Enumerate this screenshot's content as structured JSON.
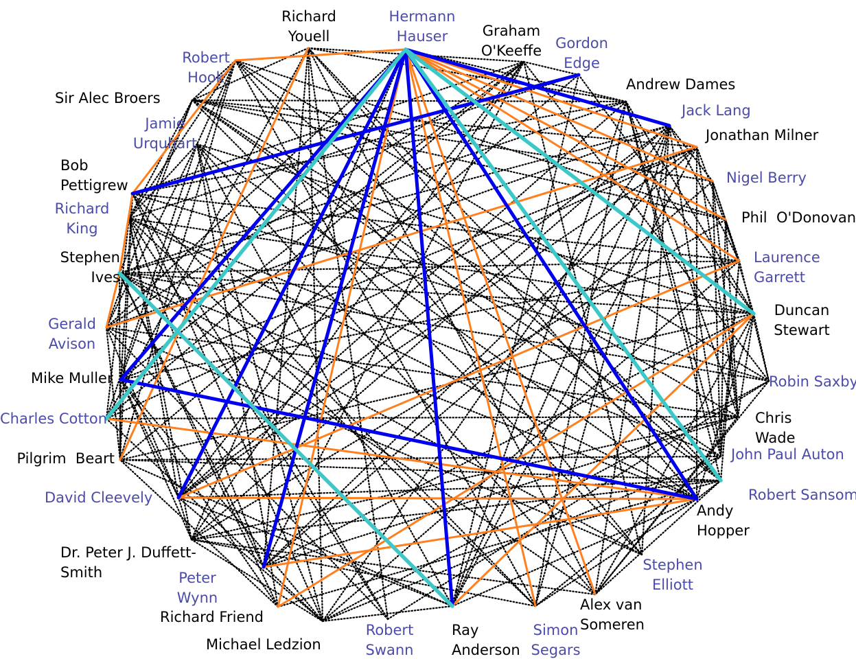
{
  "colors": {
    "black_label": "#000000",
    "blue_label": "#4b4baa",
    "dotted_edge": "#000000",
    "blue_edge": "#0000ee",
    "orange_edge": "#ff7f1e",
    "cyan_edge": "#3cc8c8"
  },
  "nodes": [
    {
      "id": "richard_youell",
      "label": "Richard\nYouell",
      "color": "black"
    },
    {
      "id": "hermann_hauser",
      "label": "Hermann\nHauser",
      "color": "blue"
    },
    {
      "id": "graham_okeeffe",
      "label": "Graham\nO'Keeffe",
      "color": "black"
    },
    {
      "id": "gordon_edge",
      "label": "Gordon\nEdge",
      "color": "blue"
    },
    {
      "id": "robert_hook",
      "label": "Robert\nHook",
      "color": "blue"
    },
    {
      "id": "andrew_dames",
      "label": "Andrew Dames",
      "color": "black"
    },
    {
      "id": "sir_alec_broers",
      "label": "Sir Alec Broers",
      "color": "black"
    },
    {
      "id": "jack_lang",
      "label": "Jack Lang",
      "color": "blue"
    },
    {
      "id": "jamie_urquhart",
      "label": "Jamie\nUrquhart",
      "color": "blue"
    },
    {
      "id": "jonathan_milner",
      "label": "Jonathan Milner",
      "color": "black"
    },
    {
      "id": "bob_pettigrew",
      "label": "Bob\nPettigrew",
      "color": "black"
    },
    {
      "id": "nigel_berry",
      "label": "Nigel Berry",
      "color": "blue"
    },
    {
      "id": "richard_king",
      "label": "Richard\nKing",
      "color": "blue"
    },
    {
      "id": "phil_odonovan",
      "label": "Phil  O'Donovan",
      "color": "black"
    },
    {
      "id": "stephen_ives",
      "label": "Stephen\nIves",
      "color": "black"
    },
    {
      "id": "laurence_garrett",
      "label": "Laurence\nGarrett",
      "color": "blue"
    },
    {
      "id": "gerald_avison",
      "label": "Gerald\nAvison",
      "color": "blue"
    },
    {
      "id": "duncan_stewart",
      "label": "Duncan\nStewart",
      "color": "black"
    },
    {
      "id": "mike_muller",
      "label": "Mike Muller",
      "color": "black"
    },
    {
      "id": "robin_saxby",
      "label": "Robin Saxby",
      "color": "blue"
    },
    {
      "id": "charles_cotton",
      "label": "Charles Cotton",
      "color": "blue"
    },
    {
      "id": "chris_wade",
      "label": "Chris\nWade",
      "color": "black"
    },
    {
      "id": "pilgrim_beart",
      "label": "Pilgrim  Beart",
      "color": "black"
    },
    {
      "id": "john_paul_auton",
      "label": "John Paul Auton",
      "color": "blue"
    },
    {
      "id": "david_cleevely",
      "label": "David Cleevely",
      "color": "blue"
    },
    {
      "id": "robert_sansom",
      "label": "Robert Sansom",
      "color": "blue"
    },
    {
      "id": "andy_hopper",
      "label": "Andy\nHopper",
      "color": "black"
    },
    {
      "id": "peter_duffett_smith",
      "label": "Dr. Peter J. Duffett-\nSmith",
      "color": "black"
    },
    {
      "id": "stephen_elliott",
      "label": "Stephen\nElliott",
      "color": "blue"
    },
    {
      "id": "peter_wynn",
      "label": "Peter\nWynn",
      "color": "blue"
    },
    {
      "id": "alex_van_someren",
      "label": "Alex van\nSomeren",
      "color": "black"
    },
    {
      "id": "richard_friend",
      "label": "Richard Friend",
      "color": "black"
    },
    {
      "id": "michael_ledzion",
      "label": "Michael Ledzion",
      "color": "black"
    },
    {
      "id": "robert_swann",
      "label": "Robert\nSwann",
      "color": "blue"
    },
    {
      "id": "ray_anderson",
      "label": "Ray\nAnderson",
      "color": "black"
    },
    {
      "id": "simon_segars",
      "label": "Simon\nSegars",
      "color": "blue"
    }
  ],
  "highlighted_edges": [
    {
      "from": "hermann_hauser",
      "to": "jack_lang",
      "color": "blue"
    },
    {
      "from": "hermann_hauser",
      "to": "mike_muller",
      "color": "blue"
    },
    {
      "from": "hermann_hauser",
      "to": "david_cleevely",
      "color": "blue"
    },
    {
      "from": "hermann_hauser",
      "to": "peter_wynn",
      "color": "blue"
    },
    {
      "from": "hermann_hauser",
      "to": "ray_anderson",
      "color": "blue"
    },
    {
      "from": "hermann_hauser",
      "to": "andy_hopper",
      "color": "blue"
    },
    {
      "from": "gordon_edge",
      "to": "bob_pettigrew",
      "color": "blue"
    },
    {
      "from": "mike_muller",
      "to": "andy_hopper",
      "color": "blue"
    },
    {
      "from": "hermann_hauser",
      "to": "charles_cotton",
      "color": "cyan"
    },
    {
      "from": "hermann_hauser",
      "to": "duncan_stewart",
      "color": "cyan"
    },
    {
      "from": "hermann_hauser",
      "to": "robert_sansom",
      "color": "cyan"
    },
    {
      "from": "stephen_ives",
      "to": "ray_anderson",
      "color": "cyan"
    },
    {
      "from": "hermann_hauser",
      "to": "robert_hook",
      "color": "orange"
    },
    {
      "from": "hermann_hauser",
      "to": "jonathan_milner",
      "color": "orange"
    },
    {
      "from": "hermann_hauser",
      "to": "nigel_berry",
      "color": "orange"
    },
    {
      "from": "hermann_hauser",
      "to": "phil_odonovan",
      "color": "orange"
    },
    {
      "from": "hermann_hauser",
      "to": "laurence_garrett",
      "color": "orange"
    },
    {
      "from": "hermann_hauser",
      "to": "richard_friend",
      "color": "orange"
    },
    {
      "from": "hermann_hauser",
      "to": "simon_segars",
      "color": "orange"
    },
    {
      "from": "hermann_hauser",
      "to": "alex_van_someren",
      "color": "orange"
    },
    {
      "from": "robert_hook",
      "to": "bob_pettigrew",
      "color": "orange"
    },
    {
      "from": "bob_pettigrew",
      "to": "stephen_ives",
      "color": "orange"
    },
    {
      "from": "stephen_ives",
      "to": "gerald_avison",
      "color": "orange"
    },
    {
      "from": "gerald_avison",
      "to": "jonathan_milner",
      "color": "orange"
    },
    {
      "from": "richard_youell",
      "to": "pilgrim_beart",
      "color": "orange"
    },
    {
      "from": "david_cleevely",
      "to": "laurence_garrett",
      "color": "orange"
    },
    {
      "from": "david_cleevely",
      "to": "andy_hopper",
      "color": "orange"
    },
    {
      "from": "charles_cotton",
      "to": "andy_hopper",
      "color": "orange"
    },
    {
      "from": "peter_wynn",
      "to": "andy_hopper",
      "color": "orange"
    },
    {
      "from": "richard_friend",
      "to": "duncan_stewart",
      "color": "orange"
    },
    {
      "from": "ray_anderson",
      "to": "duncan_stewart",
      "color": "orange"
    }
  ]
}
